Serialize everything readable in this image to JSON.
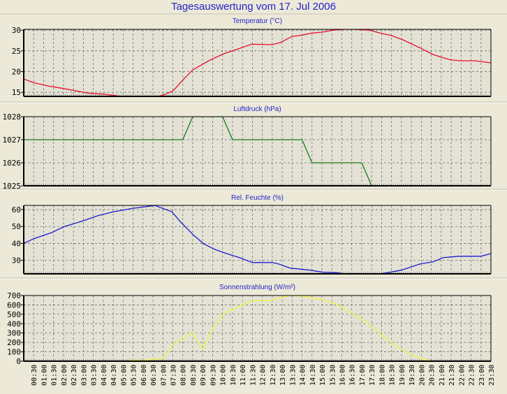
{
  "title": "Tagesauswertung vom 17. Jul 2006",
  "chart_data": [
    {
      "type": "line",
      "title": "Temperatur (°C)",
      "color": "#e8102a",
      "ylim": [
        14,
        30.2
      ],
      "yticks": [
        15,
        20,
        25,
        30
      ],
      "x": [
        0,
        0.5,
        1.25,
        2,
        3.25,
        4.1,
        4.9,
        5.5,
        6,
        6.5,
        7,
        7.5,
        8.05,
        8.5,
        9.3,
        10.05,
        10.75,
        11.45,
        12.5,
        12.9,
        13.5,
        14,
        14.5,
        15,
        15.55,
        16.1,
        16.65,
        17.4,
        18,
        18.5,
        19.1,
        19.9,
        20.6,
        21.05,
        21.5,
        22,
        22.7,
        23.5
      ],
      "y": [
        18.2,
        17.3,
        16.5,
        15.9,
        14.8,
        14.5,
        14.0,
        13.6,
        13.4,
        13.6,
        14.3,
        15.3,
        18.2,
        20.4,
        22.6,
        24.3,
        25.4,
        26.6,
        26.5,
        27.0,
        28.5,
        28.8,
        29.3,
        29.5,
        30.0,
        30.2,
        30.2,
        30.0,
        29.2,
        28.7,
        27.6,
        25.8,
        24.1,
        23.4,
        22.8,
        22.6,
        22.6,
        22.1
      ]
    },
    {
      "type": "line",
      "title": "Luftdruck (hPa)",
      "color": "#1a7a1a",
      "ylim": [
        1025,
        1028
      ],
      "yticks": [
        1025,
        1026,
        1027,
        1028
      ],
      "x": [
        0,
        8,
        8.5,
        10,
        10.5,
        14,
        14.5,
        17,
        17.5,
        23.5
      ],
      "y": [
        1027,
        1027,
        1028,
        1028,
        1027,
        1027,
        1026,
        1026,
        1025,
        1025
      ]
    },
    {
      "type": "line",
      "title": "Rel. Feuchte (%)",
      "color": "#1c1cd0",
      "ylim": [
        22,
        62.5
      ],
      "yticks": [
        30,
        40,
        50,
        60
      ],
      "x": [
        0,
        0.5,
        1.4,
        2.05,
        3,
        3.7,
        4.5,
        5.5,
        6.6,
        7.45,
        7.9,
        8.55,
        9.05,
        9.6,
        10.2,
        10.85,
        11.5,
        12.5,
        12.8,
        13.4,
        14.4,
        15.05,
        15.7,
        16.5,
        17.5,
        18.2,
        19,
        19.95,
        20.6,
        21.1,
        21.9,
        23,
        23.5
      ],
      "y": [
        40,
        42.8,
        46.4,
        50,
        53.4,
        56.3,
        58.7,
        60.8,
        62.4,
        58.7,
        52.6,
        44.8,
        39.8,
        36.5,
        34,
        31.6,
        28.7,
        28.7,
        27.9,
        25.4,
        24.2,
        23,
        22.7,
        21.5,
        21.3,
        22.5,
        24.2,
        27.9,
        29.1,
        31.6,
        32.4,
        32.4,
        34
      ]
    },
    {
      "type": "line",
      "title": "Sonnenstrahlung (W/m²)",
      "color": "#f4f440",
      "ylim": [
        0,
        700
      ],
      "yticks": [
        0,
        100,
        200,
        300,
        400,
        500,
        600,
        700
      ],
      "x": [
        0,
        5.25,
        5.5,
        6,
        6.4,
        7,
        7.45,
        7.95,
        8.45,
        9,
        9.4,
        10.05,
        10.5,
        11,
        11.45,
        12.45,
        12.95,
        13.4,
        14,
        15,
        15.55,
        16.4,
        17.3,
        18,
        18.7,
        19.4,
        20,
        20.5,
        23.5
      ],
      "y": [
        0,
        0,
        10,
        5,
        22,
        30,
        166,
        240,
        308,
        129,
        303,
        506,
        551,
        600,
        645,
        645,
        680,
        700,
        695,
        655,
        625,
        526,
        402,
        278,
        166,
        79,
        25,
        0,
        0
      ]
    }
  ],
  "x_axis": {
    "range_hours": [
      0,
      23.5
    ],
    "tick_labels": [
      "00:30",
      "01:00",
      "01:30",
      "02:00",
      "02:30",
      "03:00",
      "03:30",
      "04:00",
      "04:30",
      "05:00",
      "05:30",
      "06:00",
      "06:30",
      "07:00",
      "07:30",
      "08:00",
      "08:30",
      "09:00",
      "09:30",
      "10:00",
      "10:30",
      "11:00",
      "11:30",
      "12:00",
      "12:30",
      "13:00",
      "13:30",
      "14:00",
      "14:30",
      "15:00",
      "15:30",
      "16:00",
      "16:30",
      "17:00",
      "17:30",
      "18:00",
      "18:30",
      "19:00",
      "19:30",
      "20:00",
      "20:30",
      "21:00",
      "21:30",
      "22:00",
      "22:30",
      "23:00",
      "23:30"
    ]
  }
}
